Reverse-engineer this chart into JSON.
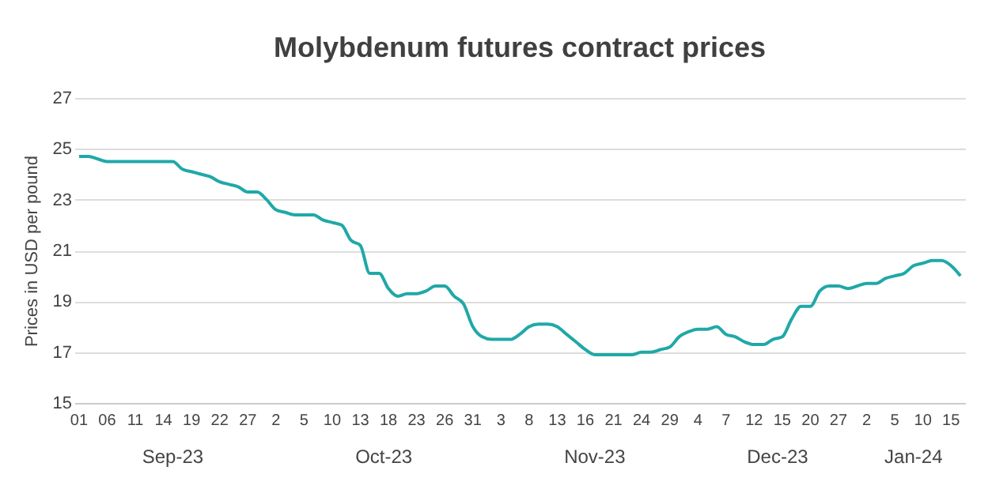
{
  "chart_data": {
    "type": "line",
    "title": "Molybdenum futures contract prices",
    "ylabel": "Prices in USD per pound",
    "categories": [
      "01",
      null,
      null,
      "06",
      null,
      null,
      "11",
      null,
      null,
      "14",
      null,
      null,
      "19",
      null,
      null,
      "22",
      null,
      null,
      "27",
      null,
      null,
      "2",
      null,
      null,
      "5",
      null,
      null,
      "10",
      null,
      null,
      "13",
      null,
      null,
      "18",
      null,
      null,
      "23",
      null,
      null,
      "26",
      null,
      null,
      "31",
      null,
      null,
      "3",
      null,
      null,
      "8",
      null,
      null,
      "13",
      null,
      null,
      "16",
      null,
      null,
      "21",
      null,
      null,
      "24",
      null,
      null,
      "29",
      null,
      null,
      "4",
      null,
      null,
      "7",
      null,
      null,
      "12",
      null,
      null,
      "15",
      null,
      null,
      "20",
      null,
      null,
      "27",
      null,
      null,
      "2",
      null,
      null,
      "5",
      null,
      null,
      "10",
      null,
      null,
      "15",
      null
    ],
    "series": [
      {
        "color": "#20a8a8",
        "values": [
          24.7,
          24.7,
          24.6,
          24.5,
          24.5,
          24.5,
          24.5,
          24.5,
          24.5,
          24.5,
          24.5,
          24.2,
          24.1,
          24.0,
          23.9,
          23.7,
          23.6,
          23.5,
          23.3,
          23.3,
          23.0,
          22.6,
          22.5,
          22.4,
          22.4,
          22.4,
          22.2,
          22.1,
          22.0,
          21.4,
          21.2,
          20.1,
          20.1,
          19.5,
          19.2,
          19.3,
          19.3,
          19.4,
          19.6,
          19.6,
          19.2,
          18.9,
          18.0,
          17.6,
          17.5,
          17.5,
          17.5,
          17.7,
          18.0,
          18.1,
          18.1,
          18.0,
          17.7,
          17.4,
          17.1,
          16.9,
          16.9,
          16.9,
          16.9,
          16.9,
          17.0,
          17.0,
          17.1,
          17.2,
          17.6,
          17.8,
          17.9,
          17.9,
          18.0,
          17.7,
          17.6,
          17.4,
          17.3,
          17.3,
          17.5,
          17.6,
          18.3,
          18.8,
          18.8,
          19.4,
          19.6,
          19.6,
          19.5,
          19.6,
          19.7,
          19.7,
          19.9,
          20.0,
          20.1,
          20.4,
          20.5,
          20.6,
          20.6,
          20.4,
          20.0
        ]
      }
    ],
    "ylim": [
      15,
      27
    ],
    "yticks": [
      15,
      17,
      19,
      21,
      23,
      25,
      27
    ],
    "grid": "y",
    "annotations": [
      "Sep-23",
      "Oct-23",
      "Nov-23",
      "Dec-23",
      "Jan-24"
    ]
  }
}
